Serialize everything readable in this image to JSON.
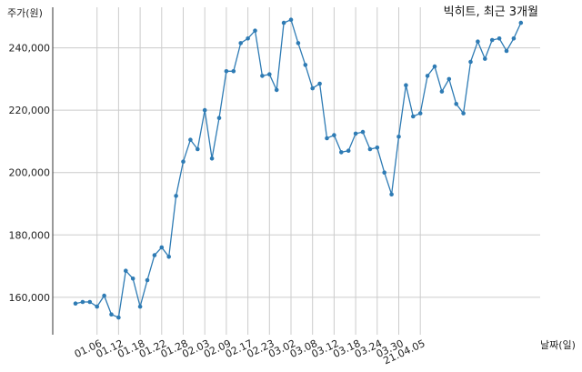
{
  "chart_data": {
    "type": "line",
    "title": "빅히트, 최근 3개월",
    "ylabel": "주가(원)",
    "xlabel": "날짜(일)",
    "ylim": [
      148000,
      253000
    ],
    "grid": true,
    "color": "#2e7bb4",
    "x_tick_labels": [
      "01.06",
      "01.12",
      "01.18",
      "01.22",
      "01.28",
      "02.03",
      "02.09",
      "02.17",
      "02.23",
      "03.02",
      "03.08",
      "03.12",
      "03.18",
      "03.24",
      "03.30",
      "21.04.05"
    ],
    "x_tick_indices": [
      3,
      6,
      9,
      12,
      15,
      18,
      21,
      24,
      27,
      30,
      33,
      36,
      39,
      42,
      45,
      48
    ],
    "y_ticks": [
      160000,
      180000,
      200000,
      220000,
      240000
    ],
    "y_tick_labels": [
      "160,000",
      "180,000",
      "200,000",
      "220,000",
      "240,000"
    ],
    "values": [
      158000,
      158500,
      158500,
      157000,
      160500,
      154500,
      153500,
      168500,
      166000,
      157000,
      165500,
      173500,
      176000,
      173000,
      192500,
      203500,
      210500,
      207500,
      220000,
      204500,
      217500,
      232500,
      232500,
      241500,
      243000,
      245500,
      231000,
      231500,
      226500,
      248000,
      249000,
      241500,
      234500,
      227000,
      228500,
      211000,
      212000,
      206500,
      207000,
      212500,
      213000,
      207500,
      208000,
      200000,
      193000,
      211500,
      228000,
      218000,
      219000,
      231000,
      234000,
      226000,
      230000,
      222000,
      219000,
      235500,
      242000,
      236500,
      242500,
      243000,
      239000,
      243000,
      248000
    ]
  }
}
